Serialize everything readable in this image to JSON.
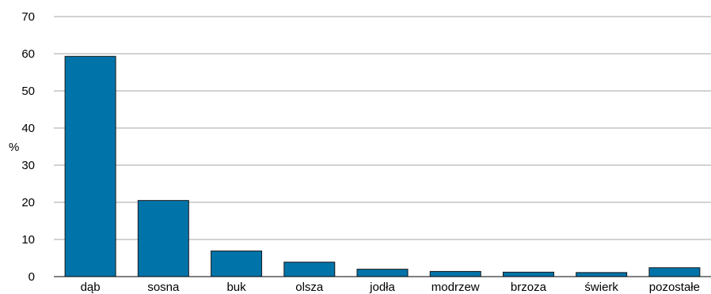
{
  "chart_data": {
    "type": "bar",
    "categories": [
      "dąb",
      "sosna",
      "buk",
      "olsza",
      "jodła",
      "modrzew",
      "brzoza",
      "świerk",
      "pozostałe"
    ],
    "values": [
      59.3,
      20.5,
      6.9,
      3.9,
      2.0,
      1.4,
      1.2,
      1.1,
      2.4
    ],
    "ylabel": "%",
    "ylim": [
      0,
      70
    ],
    "yticks": [
      0,
      10,
      20,
      30,
      40,
      50,
      60,
      70
    ],
    "grid": true,
    "bar_color": "#0073a8",
    "bar_edge_color": "#1a1a1a",
    "grid_color": "#a6a6a6"
  }
}
